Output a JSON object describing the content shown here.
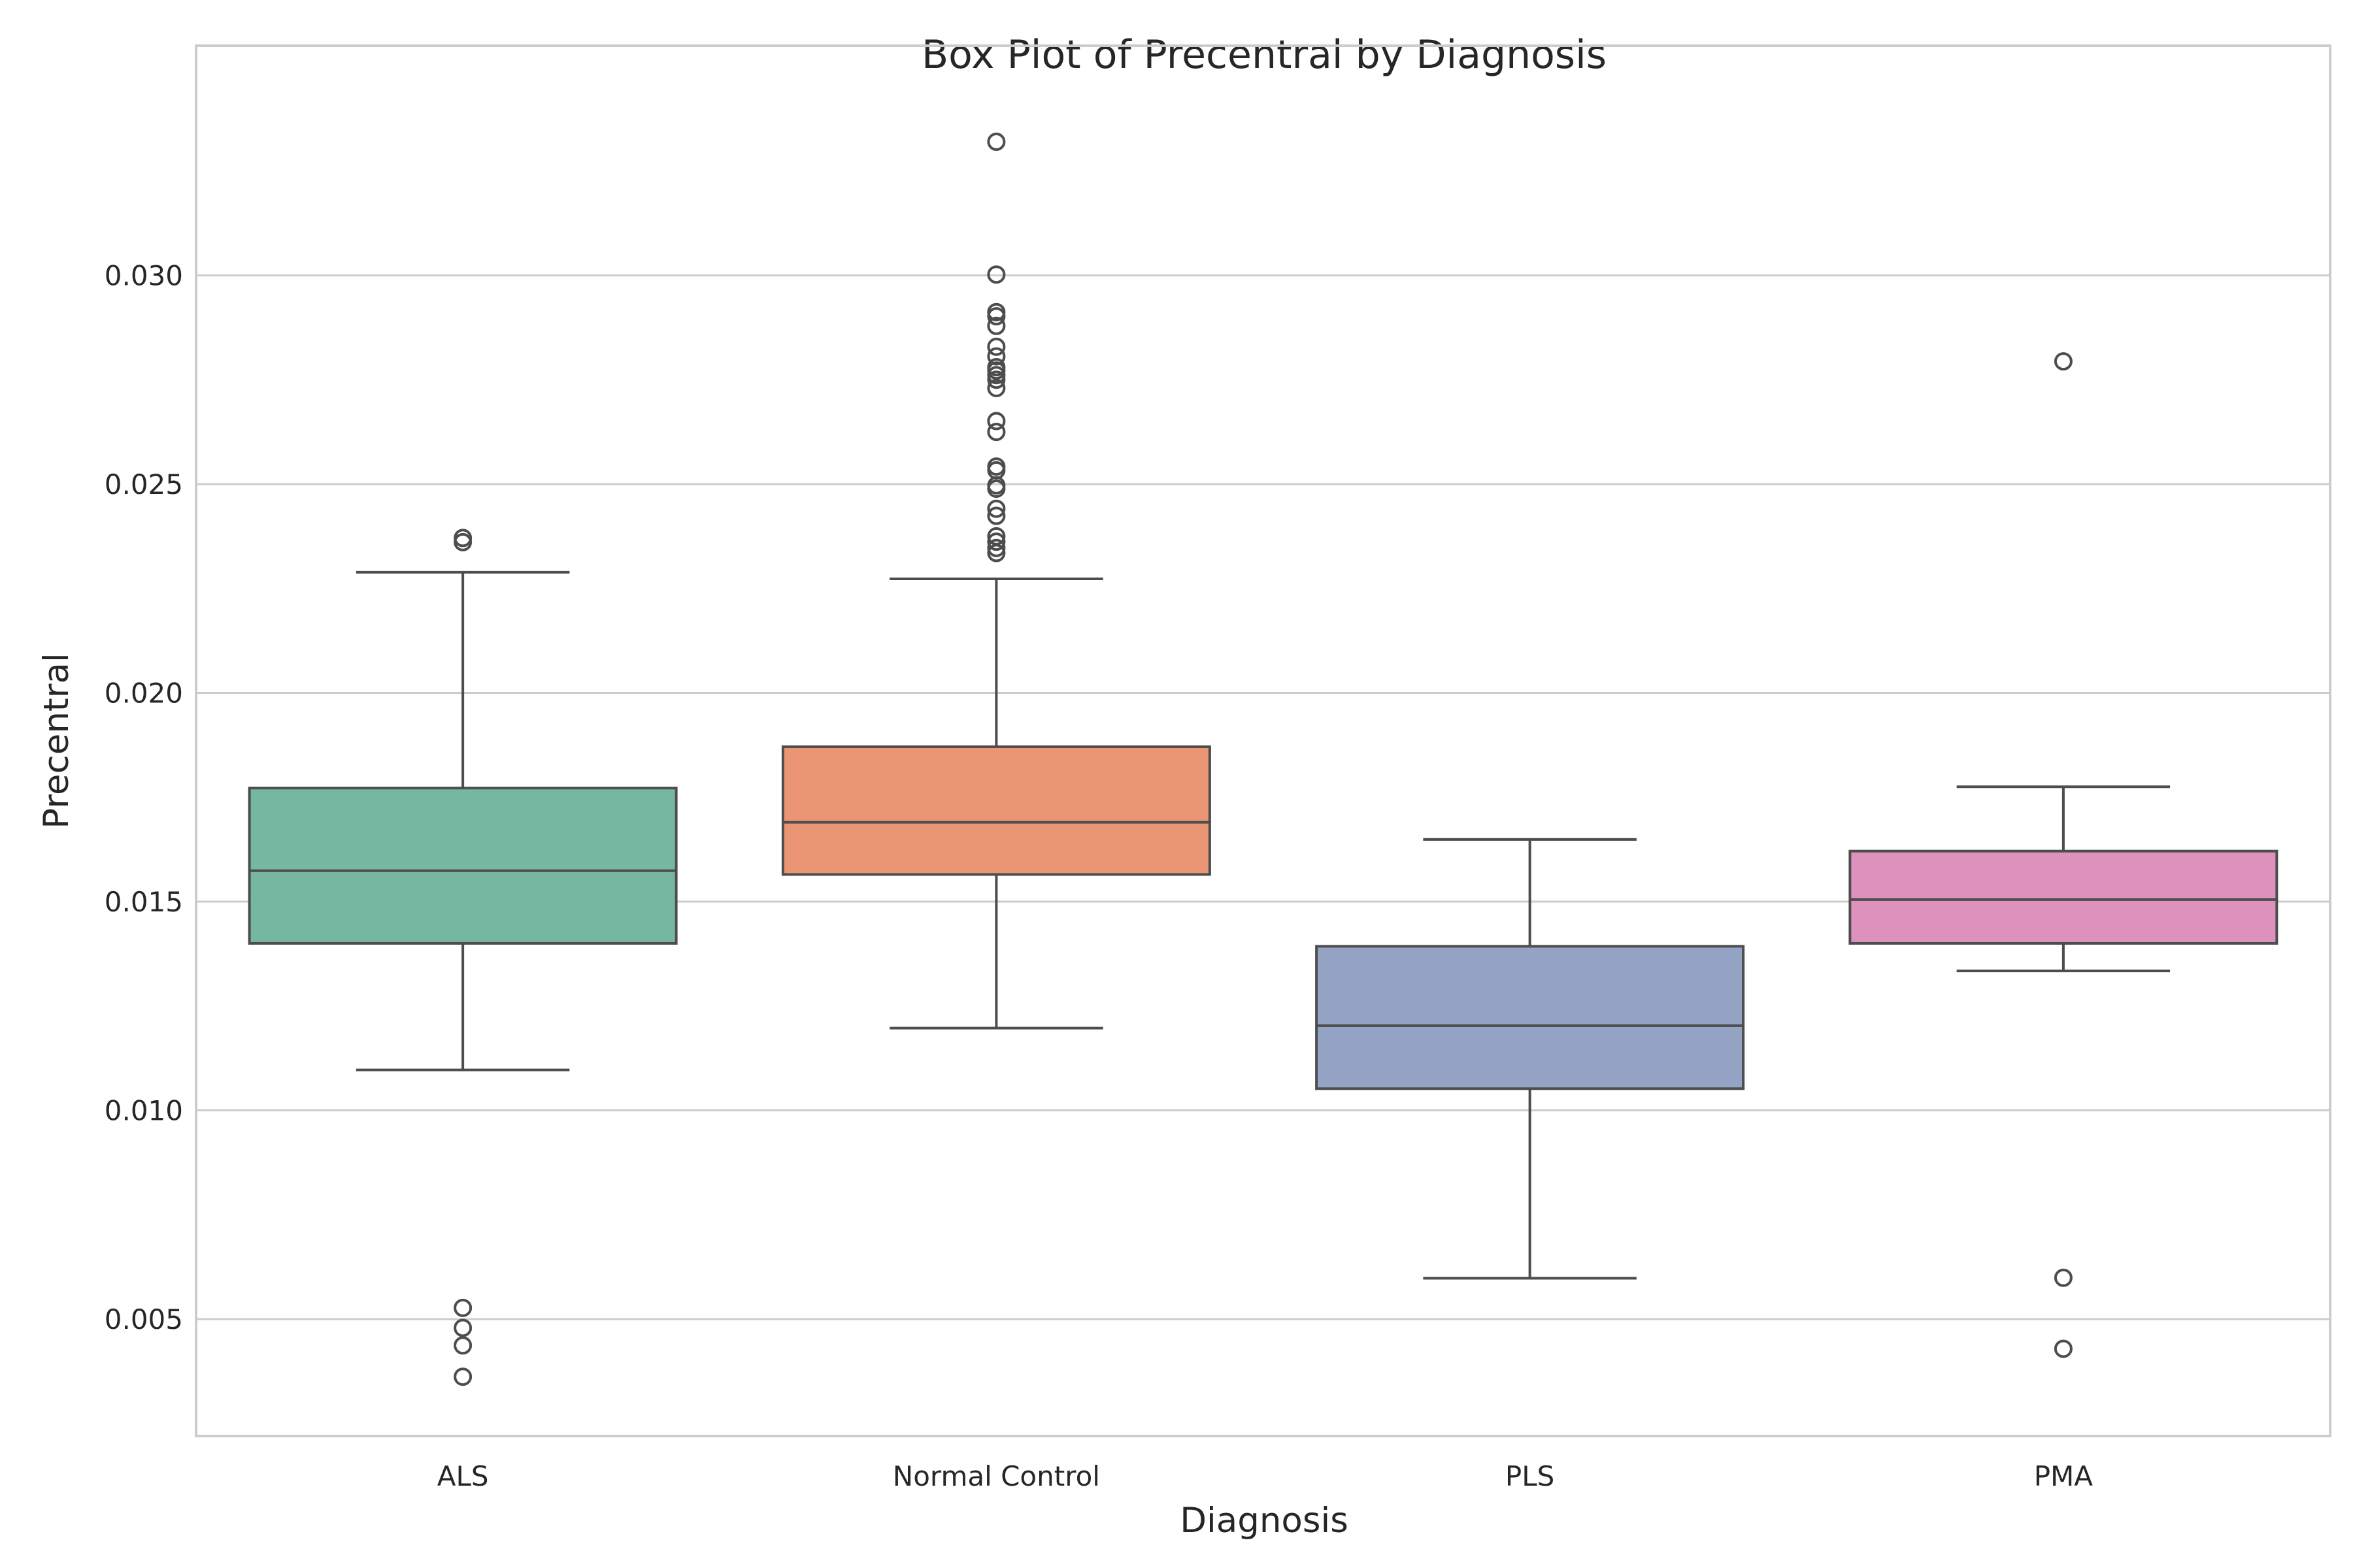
{
  "chart_data": {
    "type": "box",
    "title": "Box Plot of Precentral by Diagnosis",
    "xlabel": "Diagnosis",
    "ylabel": "Precentral",
    "ylim": [
      0.0022,
      0.0355
    ],
    "yticks": [
      0.005,
      0.01,
      0.015,
      0.02,
      0.025,
      0.03
    ],
    "ytick_labels": [
      "0.005",
      "0.010",
      "0.015",
      "0.020",
      "0.025",
      "0.030"
    ],
    "grid": true,
    "categories": [
      "ALS",
      "Normal Control",
      "PLS",
      "PMA"
    ],
    "boxes": [
      {
        "category": "ALS",
        "color": "#76b7a2",
        "whislo": 0.01097,
        "q1": 0.014,
        "median": 0.01574,
        "q3": 0.01772,
        "whishi": 0.02289,
        "fliers": [
          0.02361,
          0.02371,
          0.00527,
          0.00479,
          0.00437,
          0.00362
        ]
      },
      {
        "category": "Normal Control",
        "color": "#ea9674",
        "whislo": 0.01197,
        "q1": 0.01565,
        "median": 0.0169,
        "q3": 0.01871,
        "whishi": 0.02273,
        "fliers": [
          0.0332,
          0.03002,
          0.02912,
          0.02902,
          0.02879,
          0.02829,
          0.02806,
          0.0278,
          0.02772,
          0.02761,
          0.0275,
          0.0273,
          0.02651,
          0.02625,
          0.02542,
          0.02533,
          0.02497,
          0.02489,
          0.02441,
          0.02424,
          0.02375,
          0.02362,
          0.02347,
          0.02335
        ]
      },
      {
        "category": "PLS",
        "color": "#95a4c4",
        "whislo": 0.00598,
        "q1": 0.01052,
        "median": 0.01203,
        "q3": 0.01393,
        "whishi": 0.01649,
        "fliers": []
      },
      {
        "category": "PMA",
        "color": "#dd91bd",
        "whislo": 0.01334,
        "q1": 0.014,
        "median": 0.01505,
        "q3": 0.01621,
        "whishi": 0.01775,
        "fliers": [
          0.02794,
          0.00599,
          0.00429
        ]
      }
    ]
  }
}
